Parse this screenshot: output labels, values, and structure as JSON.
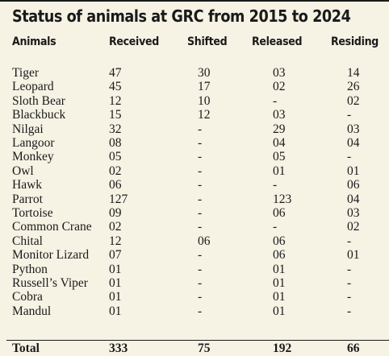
{
  "title": "Status of animals at GRC from 2015 to 2024",
  "headers": {
    "animals": "Animals",
    "received": "Received",
    "shifted": "Shifted",
    "released": "Released",
    "residing": "Residing"
  },
  "rows": [
    {
      "name": "Tiger",
      "received": "47",
      "shifted": "30",
      "released": "03",
      "residing": "14"
    },
    {
      "name": "Leopard",
      "received": "45",
      "shifted": "17",
      "released": "02",
      "residing": "26"
    },
    {
      "name": "Sloth Bear",
      "received": "12",
      "shifted": "10",
      "released": "-",
      "residing": "02"
    },
    {
      "name": "Blackbuck",
      "received": "15",
      "shifted": "12",
      "released": "03",
      "residing": "-"
    },
    {
      "name": "Nilgai",
      "received": "32",
      "shifted": "-",
      "released": "29",
      "residing": "03"
    },
    {
      "name": "Langoor",
      "received": "08",
      "shifted": "-",
      "released": "04",
      "residing": "04"
    },
    {
      "name": "Monkey",
      "received": "05",
      "shifted": "-",
      "released": "05",
      "residing": "-"
    },
    {
      "name": "Owl",
      "received": "02",
      "shifted": "-",
      "released": "01",
      "residing": "01"
    },
    {
      "name": "Hawk",
      "received": "06",
      "shifted": "-",
      "released": "-",
      "residing": "06"
    },
    {
      "name": "Parrot",
      "received": "127",
      "shifted": "-",
      "released": "123",
      "residing": "04"
    },
    {
      "name": "Tortoise",
      "received": "09",
      "shifted": "-",
      "released": "06",
      "residing": "03"
    },
    {
      "name": "Common Crane",
      "received": "02",
      "shifted": "-",
      "released": "-",
      "residing": "02"
    },
    {
      "name": "Chital",
      "received": "12",
      "shifted": "06",
      "released": "06",
      "residing": "-"
    },
    {
      "name": "Monitor Lizard",
      "received": "07",
      "shifted": "-",
      "released": "06",
      "residing": "01"
    },
    {
      "name": "Python",
      "received": "01",
      "shifted": "-",
      "released": "01",
      "residing": "-"
    },
    {
      "name": "Russell’s Viper",
      "received": "01",
      "shifted": "-",
      "released": "01",
      "residing": "-"
    },
    {
      "name": "Cobra",
      "received": "01",
      "shifted": "-",
      "released": "01",
      "residing": "-"
    },
    {
      "name": "Mandul",
      "received": "01",
      "shifted": "-",
      "released": "01",
      "residing": "-"
    }
  ],
  "total": {
    "name": "Total",
    "received": "333",
    "shifted": "75",
    "released": "192",
    "residing": "66"
  }
}
